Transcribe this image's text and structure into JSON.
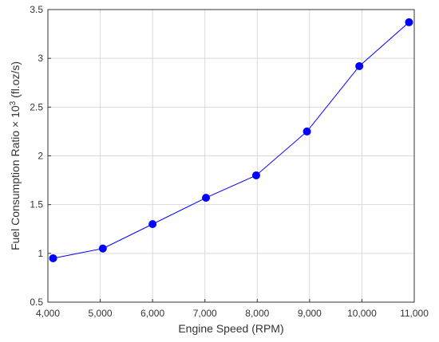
{
  "chart_data": {
    "type": "line",
    "title": "",
    "xlabel": "Engine Speed (RPM)",
    "ylabel": {
      "prefix": "Fuel Consumption Ratio × 10",
      "superscript": "3",
      "suffix": " (fl.oz/s)"
    },
    "xlim": [
      4000,
      11000
    ],
    "ylim": [
      0.5,
      3.5
    ],
    "x_ticks": [
      4000,
      5000,
      6000,
      7000,
      8000,
      9000,
      10000,
      11000
    ],
    "x_tick_labels": [
      "4,000",
      "5,000",
      "6,000",
      "7,000",
      "8,000",
      "9,000",
      "10,000",
      "11,000"
    ],
    "y_ticks": [
      0.5,
      1,
      1.5,
      2,
      2.5,
      3,
      3.5
    ],
    "y_tick_labels": [
      "0.5",
      "1",
      "1.5",
      "2",
      "2.5",
      "3",
      "3.5"
    ],
    "grid": true,
    "series": [
      {
        "color": "#0000ff",
        "x": [
          4100,
          5050,
          6000,
          7020,
          7980,
          8950,
          9950,
          10900
        ],
        "y": [
          0.95,
          1.05,
          1.3,
          1.57,
          1.8,
          2.25,
          2.92,
          3.37
        ]
      }
    ]
  }
}
